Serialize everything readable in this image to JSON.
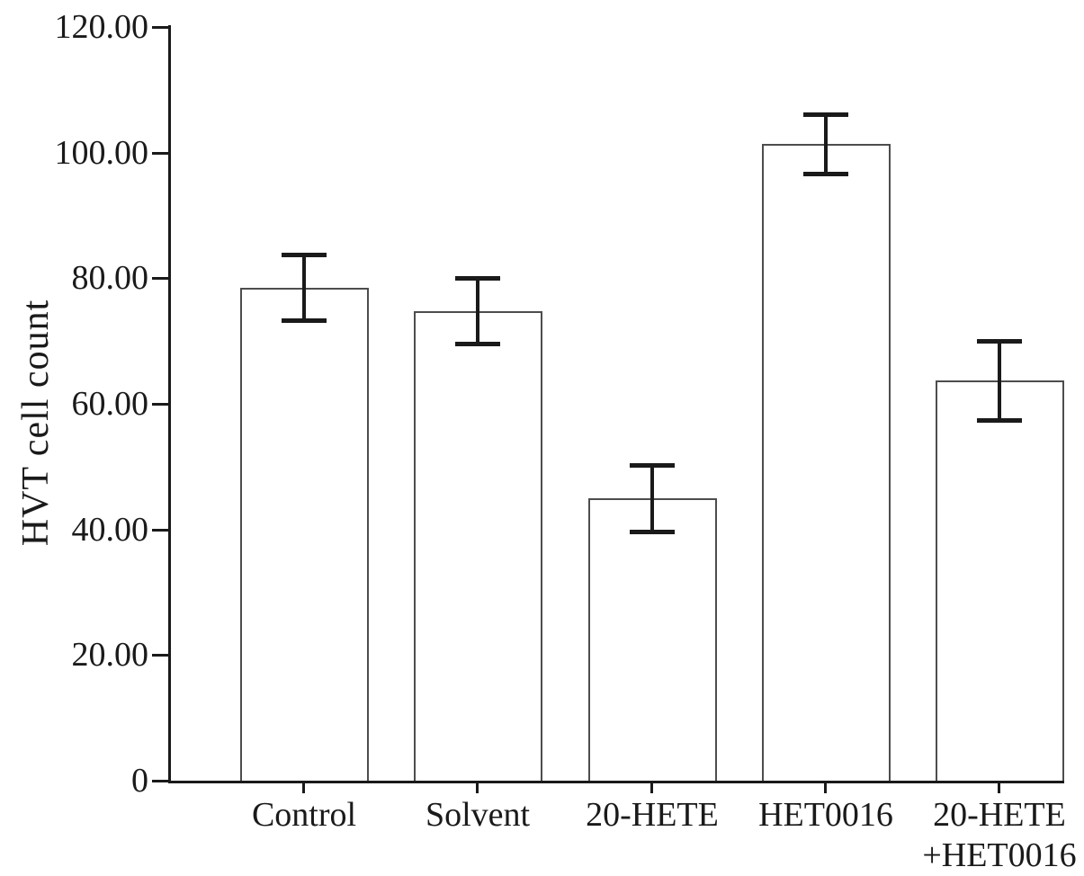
{
  "chart_data": {
    "type": "bar",
    "title": "",
    "xlabel": "",
    "ylabel": "HVT cell count",
    "ylim": [
      0,
      120
    ],
    "grid": false,
    "legend": "none",
    "y_ticks": [
      {
        "value": 0,
        "label": "0"
      },
      {
        "value": 20,
        "label": "20.00"
      },
      {
        "value": 40,
        "label": "40.00"
      },
      {
        "value": 60,
        "label": "60.00"
      },
      {
        "value": 80,
        "label": "80.00"
      },
      {
        "value": 100,
        "label": "100.00"
      },
      {
        "value": 120,
        "label": "120.00"
      }
    ],
    "categories": [
      "Control",
      "Solvent",
      "20-HETE",
      "HET0016",
      "20-HETE +HET0016"
    ],
    "category_label_lines": [
      [
        "Control"
      ],
      [
        "Solvent"
      ],
      [
        "20-HETE"
      ],
      [
        "HET0016"
      ],
      [
        "20-HETE",
        "+HET0016"
      ]
    ],
    "values": [
      78.5,
      74.8,
      45.0,
      101.4,
      63.7
    ],
    "errors": [
      5.2,
      5.2,
      5.3,
      4.7,
      6.3
    ],
    "style": {
      "background": "#ffffff",
      "bar_fill": "#ffffff",
      "bar_border": "#4d4d4d",
      "error_color": "#1a1a1a",
      "axis_color": "#1a1a1a",
      "text_color": "#1a1a1a"
    }
  }
}
